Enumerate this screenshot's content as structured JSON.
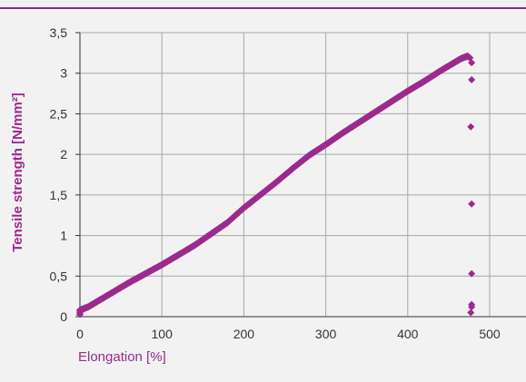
{
  "chart_data": {
    "type": "scatter",
    "title": "",
    "xlabel": "Elongation [%]",
    "ylabel": "Tensile strength [N/mm²]",
    "xlim": [
      0,
      550
    ],
    "ylim": [
      0,
      3.5
    ],
    "x_ticks": [
      0,
      100,
      200,
      300,
      400,
      500
    ],
    "y_ticks": [
      0,
      0.5,
      1,
      1.5,
      2,
      2.5,
      3,
      3.5
    ],
    "x_tick_labels": [
      "0",
      "100",
      "200",
      "300",
      "400",
      "500"
    ],
    "y_tick_labels": [
      "0",
      "0,5",
      "1",
      "1,5",
      "2",
      "2,5",
      "3",
      "3,5"
    ],
    "grid": true,
    "legend": "none",
    "series": [
      {
        "color": "#9c2a8e",
        "marker": "diamond",
        "points": [
          [
            0,
            0.03
          ],
          [
            0,
            0.08
          ],
          [
            10,
            0.12
          ],
          [
            20,
            0.18
          ],
          [
            40,
            0.3
          ],
          [
            60,
            0.42
          ],
          [
            80,
            0.53
          ],
          [
            100,
            0.64
          ],
          [
            120,
            0.76
          ],
          [
            140,
            0.88
          ],
          [
            160,
            1.02
          ],
          [
            180,
            1.16
          ],
          [
            200,
            1.34
          ],
          [
            220,
            1.5
          ],
          [
            240,
            1.66
          ],
          [
            260,
            1.83
          ],
          [
            280,
            1.99
          ],
          [
            300,
            2.12
          ],
          [
            320,
            2.26
          ],
          [
            340,
            2.39
          ],
          [
            360,
            2.52
          ],
          [
            380,
            2.65
          ],
          [
            400,
            2.78
          ],
          [
            420,
            2.9
          ],
          [
            440,
            3.03
          ],
          [
            455,
            3.12
          ],
          [
            465,
            3.18
          ],
          [
            470,
            3.2
          ],
          [
            473,
            3.21
          ],
          [
            476,
            3.19
          ],
          [
            478,
            3.13
          ],
          [
            478,
            2.92
          ],
          [
            477,
            2.34
          ],
          [
            478,
            1.39
          ],
          [
            478,
            0.53
          ],
          [
            478,
            0.15
          ],
          [
            478,
            0.12
          ],
          [
            477,
            0.05
          ]
        ]
      }
    ]
  }
}
